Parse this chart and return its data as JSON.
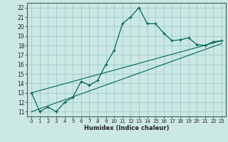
{
  "xlabel": "Humidex (Indice chaleur)",
  "ylabel": "",
  "bg_color": "#cce8e4",
  "grid_color": "#99cccc",
  "line_color": "#006655",
  "xlim": [
    -0.5,
    23.5
  ],
  "ylim": [
    10.5,
    22.5
  ],
  "xticks": [
    0,
    1,
    2,
    3,
    4,
    5,
    6,
    7,
    8,
    9,
    10,
    11,
    12,
    13,
    14,
    15,
    16,
    17,
    18,
    19,
    20,
    21,
    22,
    23
  ],
  "yticks": [
    11,
    12,
    13,
    14,
    15,
    16,
    17,
    18,
    19,
    20,
    21,
    22
  ],
  "main_x": [
    0,
    1,
    2,
    3,
    4,
    5,
    6,
    7,
    8,
    9,
    10,
    11,
    12,
    13,
    14,
    15,
    16,
    17,
    18,
    19,
    20,
    21,
    22,
    23
  ],
  "main_y": [
    13,
    11,
    11.5,
    11,
    12,
    12.5,
    14.2,
    13.8,
    14.3,
    16.0,
    17.5,
    20.3,
    21.0,
    22.0,
    20.3,
    20.3,
    19.3,
    18.5,
    18.6,
    18.8,
    18.1,
    18.0,
    18.4,
    18.5
  ],
  "line1_x": [
    0,
    23
  ],
  "line1_y": [
    13.0,
    18.5
  ],
  "line2_x": [
    0,
    23
  ],
  "line2_y": [
    11.0,
    18.2
  ]
}
